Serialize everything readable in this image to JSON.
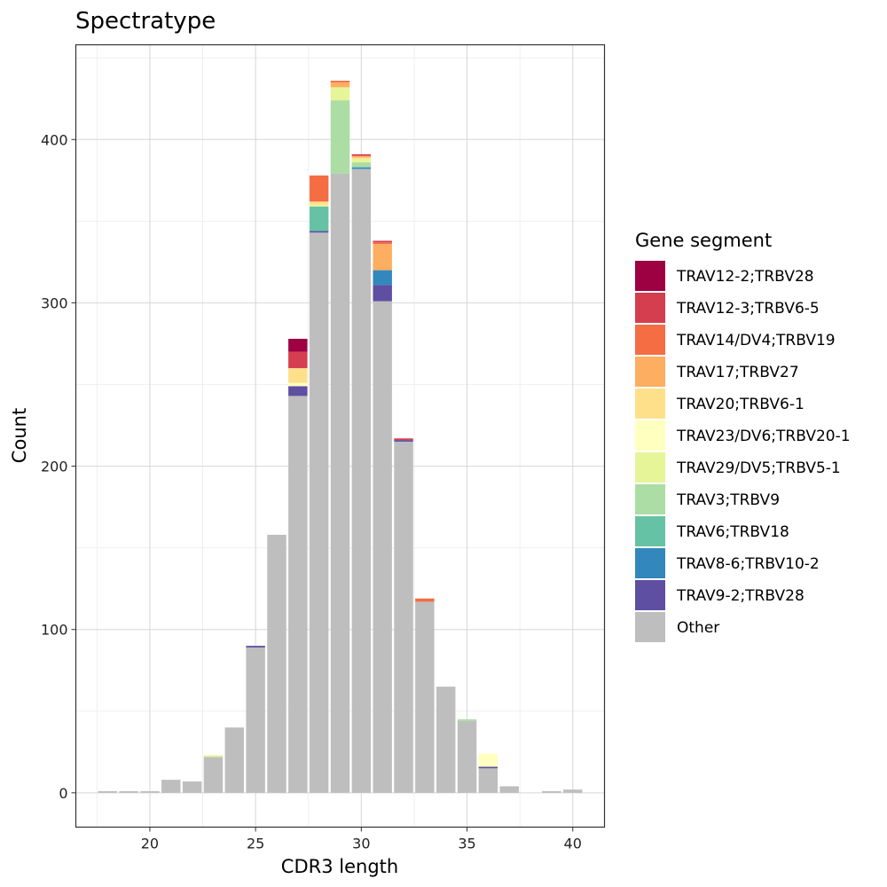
{
  "chart_data": {
    "type": "bar",
    "stacked": true,
    "title": "Spectratype",
    "xlabel": "CDR3 length",
    "ylabel": "Count",
    "xlim": [
      16.5,
      41.5
    ],
    "ylim": [
      -21,
      458
    ],
    "x_ticks": [
      20,
      25,
      30,
      35,
      40
    ],
    "y_ticks": [
      0,
      100,
      200,
      300,
      400
    ],
    "grid": true,
    "legend": {
      "title": "Gene segment",
      "position": "right",
      "entries": [
        {
          "name": "TRAV12-2;TRBV28",
          "color": "#9e0142"
        },
        {
          "name": "TRAV12-3;TRBV6-5",
          "color": "#d53e4f"
        },
        {
          "name": "TRAV14/DV4;TRBV19",
          "color": "#f46d43"
        },
        {
          "name": "TRAV17;TRBV27",
          "color": "#fdae61"
        },
        {
          "name": "TRAV20;TRBV6-1",
          "color": "#fee08b"
        },
        {
          "name": "TRAV23/DV6;TRBV20-1",
          "color": "#ffffbf"
        },
        {
          "name": "TRAV29/DV5;TRBV5-1",
          "color": "#e6f598"
        },
        {
          "name": "TRAV3;TRBV9",
          "color": "#abdda4"
        },
        {
          "name": "TRAV6;TRBV18",
          "color": "#66c2a5"
        },
        {
          "name": "TRAV8-6;TRBV10-2",
          "color": "#3288bd"
        },
        {
          "name": "TRAV9-2;TRBV28",
          "color": "#5e4fa2"
        },
        {
          "name": "Other",
          "color": "#bebebe"
        }
      ]
    },
    "bars": [
      {
        "x": 18,
        "segments": [
          {
            "name": "Other",
            "value": 1
          }
        ]
      },
      {
        "x": 19,
        "segments": [
          {
            "name": "Other",
            "value": 1
          }
        ]
      },
      {
        "x": 20,
        "segments": [
          {
            "name": "Other",
            "value": 1
          }
        ]
      },
      {
        "x": 21,
        "segments": [
          {
            "name": "Other",
            "value": 8
          }
        ]
      },
      {
        "x": 22,
        "segments": [
          {
            "name": "Other",
            "value": 7
          }
        ]
      },
      {
        "x": 23,
        "segments": [
          {
            "name": "Other",
            "value": 22
          },
          {
            "name": "TRAV29/DV5;TRBV5-1",
            "value": 1
          }
        ]
      },
      {
        "x": 24,
        "segments": [
          {
            "name": "Other",
            "value": 40
          }
        ]
      },
      {
        "x": 25,
        "segments": [
          {
            "name": "Other",
            "value": 89
          },
          {
            "name": "TRAV9-2;TRBV28",
            "value": 1
          }
        ]
      },
      {
        "x": 26,
        "segments": [
          {
            "name": "Other",
            "value": 158
          }
        ]
      },
      {
        "x": 27,
        "segments": [
          {
            "name": "Other",
            "value": 243
          },
          {
            "name": "TRAV9-2;TRBV28",
            "value": 6
          },
          {
            "name": "TRAV23/DV6;TRBV20-1",
            "value": 2
          },
          {
            "name": "TRAV20;TRBV6-1",
            "value": 9
          },
          {
            "name": "TRAV12-3;TRBV6-5",
            "value": 10
          },
          {
            "name": "TRAV12-2;TRBV28",
            "value": 8
          }
        ]
      },
      {
        "x": 28,
        "segments": [
          {
            "name": "Other",
            "value": 343
          },
          {
            "name": "TRAV9-2;TRBV28",
            "value": 1
          },
          {
            "name": "TRAV6;TRBV18",
            "value": 15
          },
          {
            "name": "TRAV29/DV5;TRBV5-1",
            "value": 1
          },
          {
            "name": "TRAV20;TRBV6-1",
            "value": 2
          },
          {
            "name": "TRAV14/DV4;TRBV19",
            "value": 16
          }
        ]
      },
      {
        "x": 29,
        "segments": [
          {
            "name": "Other",
            "value": 379
          },
          {
            "name": "TRAV3;TRBV9",
            "value": 45
          },
          {
            "name": "TRAV29/DV5;TRBV5-1",
            "value": 8
          },
          {
            "name": "TRAV17;TRBV27",
            "value": 3
          },
          {
            "name": "TRAV14/DV4;TRBV19",
            "value": 1
          }
        ]
      },
      {
        "x": 30,
        "segments": [
          {
            "name": "Other",
            "value": 382
          },
          {
            "name": "TRAV8-6;TRBV10-2",
            "value": 1
          },
          {
            "name": "TRAV3;TRBV9",
            "value": 3
          },
          {
            "name": "TRAV29/DV5;TRBV5-1",
            "value": 2
          },
          {
            "name": "TRAV20;TRBV6-1",
            "value": 1
          },
          {
            "name": "TRAV17;TRBV27",
            "value": 1
          },
          {
            "name": "TRAV12-3;TRBV6-5",
            "value": 1
          }
        ]
      },
      {
        "x": 31,
        "segments": [
          {
            "name": "Other",
            "value": 301
          },
          {
            "name": "TRAV9-2;TRBV28",
            "value": 10
          },
          {
            "name": "TRAV8-6;TRBV10-2",
            "value": 9
          },
          {
            "name": "TRAV17;TRBV27",
            "value": 16
          },
          {
            "name": "TRAV14/DV4;TRBV19",
            "value": 1
          },
          {
            "name": "TRAV12-3;TRBV6-5",
            "value": 1
          }
        ]
      },
      {
        "x": 32,
        "segments": [
          {
            "name": "Other",
            "value": 215
          },
          {
            "name": "TRAV9-2;TRBV28",
            "value": 1
          },
          {
            "name": "TRAV12-3;TRBV6-5",
            "value": 1
          }
        ]
      },
      {
        "x": 33,
        "segments": [
          {
            "name": "Other",
            "value": 117
          },
          {
            "name": "TRAV14/DV4;TRBV19",
            "value": 2
          }
        ]
      },
      {
        "x": 34,
        "segments": [
          {
            "name": "Other",
            "value": 65
          }
        ]
      },
      {
        "x": 35,
        "segments": [
          {
            "name": "Other",
            "value": 44
          },
          {
            "name": "TRAV3;TRBV9",
            "value": 1
          }
        ]
      },
      {
        "x": 36,
        "segments": [
          {
            "name": "Other",
            "value": 15
          },
          {
            "name": "TRAV9-2;TRBV28",
            "value": 1
          },
          {
            "name": "TRAV23/DV6;TRBV20-1",
            "value": 8
          }
        ]
      },
      {
        "x": 37,
        "segments": [
          {
            "name": "Other",
            "value": 4
          }
        ]
      },
      {
        "x": 39,
        "segments": [
          {
            "name": "Other",
            "value": 1
          }
        ]
      },
      {
        "x": 40,
        "segments": [
          {
            "name": "Other",
            "value": 2
          }
        ]
      }
    ]
  }
}
